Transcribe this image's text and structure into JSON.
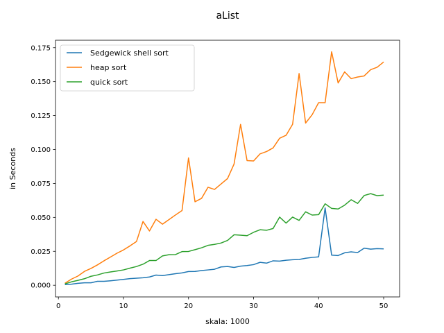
{
  "chart_data": {
    "type": "line",
    "title": "aList",
    "xlabel": "skala: 1000",
    "ylabel": "in Seconds",
    "xlim": [
      -0.45,
      52.45
    ],
    "ylim": [
      -0.0086,
      0.1805
    ],
    "xticks": [
      0,
      10,
      20,
      30,
      40,
      50
    ],
    "yticks": [
      0.0,
      0.025,
      0.05,
      0.075,
      0.1,
      0.125,
      0.15,
      0.175
    ],
    "ytick_labels": [
      "0.000",
      "0.025",
      "0.050",
      "0.075",
      "0.100",
      "0.125",
      "0.150",
      "0.175"
    ],
    "grid": false,
    "legend_position": "upper-left",
    "x": [
      1,
      2,
      3,
      4,
      5,
      6,
      7,
      8,
      9,
      10,
      11,
      12,
      13,
      14,
      15,
      16,
      17,
      18,
      19,
      20,
      21,
      22,
      23,
      24,
      25,
      26,
      27,
      28,
      29,
      30,
      31,
      32,
      33,
      34,
      35,
      36,
      37,
      38,
      39,
      40,
      41,
      42,
      43,
      44,
      45,
      46,
      47,
      48,
      49,
      50
    ],
    "series": [
      {
        "name": "Sedgewick shell sort",
        "color": "#1f77b4",
        "values": [
          0.0005,
          0.0008,
          0.0014,
          0.0018,
          0.0018,
          0.0029,
          0.0029,
          0.0033,
          0.0038,
          0.0043,
          0.0049,
          0.0052,
          0.0055,
          0.0061,
          0.0075,
          0.0071,
          0.0078,
          0.0085,
          0.0091,
          0.0101,
          0.0102,
          0.0108,
          0.0113,
          0.0118,
          0.0135,
          0.0138,
          0.0131,
          0.0141,
          0.0145,
          0.0152,
          0.0169,
          0.0163,
          0.018,
          0.0178,
          0.0184,
          0.0188,
          0.019,
          0.0199,
          0.0205,
          0.0209,
          0.057,
          0.0222,
          0.0219,
          0.0239,
          0.0246,
          0.0241,
          0.0273,
          0.0266,
          0.027,
          0.0268
        ]
      },
      {
        "name": "heap sort",
        "color": "#ff7f0e",
        "values": [
          0.0015,
          0.0045,
          0.0068,
          0.0102,
          0.0124,
          0.015,
          0.018,
          0.0208,
          0.0236,
          0.026,
          0.029,
          0.0322,
          0.047,
          0.04,
          0.0486,
          0.045,
          0.0484,
          0.0518,
          0.055,
          0.0938,
          0.0615,
          0.064,
          0.0722,
          0.0706,
          0.0746,
          0.0786,
          0.0893,
          0.1185,
          0.0918,
          0.0916,
          0.0968,
          0.0985,
          0.1012,
          0.1083,
          0.1105,
          0.1186,
          0.156,
          0.1195,
          0.1256,
          0.1345,
          0.1345,
          0.172,
          0.149,
          0.1572,
          0.1522,
          0.1534,
          0.1542,
          0.1588,
          0.1606,
          0.1645
        ]
      },
      {
        "name": "quick sort",
        "color": "#2ca02c",
        "values": [
          0.001,
          0.0025,
          0.0036,
          0.0048,
          0.0066,
          0.0076,
          0.009,
          0.0098,
          0.0105,
          0.0113,
          0.0126,
          0.0138,
          0.0155,
          0.0182,
          0.0182,
          0.0216,
          0.0225,
          0.0226,
          0.0248,
          0.0249,
          0.0262,
          0.0276,
          0.0294,
          0.0301,
          0.0311,
          0.033,
          0.0372,
          0.0369,
          0.0365,
          0.039,
          0.0409,
          0.0405,
          0.0418,
          0.0502,
          0.0458,
          0.0502,
          0.0478,
          0.0541,
          0.0517,
          0.052,
          0.06,
          0.0566,
          0.0562,
          0.059,
          0.063,
          0.0603,
          0.0661,
          0.0675,
          0.066,
          0.0664
        ]
      }
    ]
  }
}
